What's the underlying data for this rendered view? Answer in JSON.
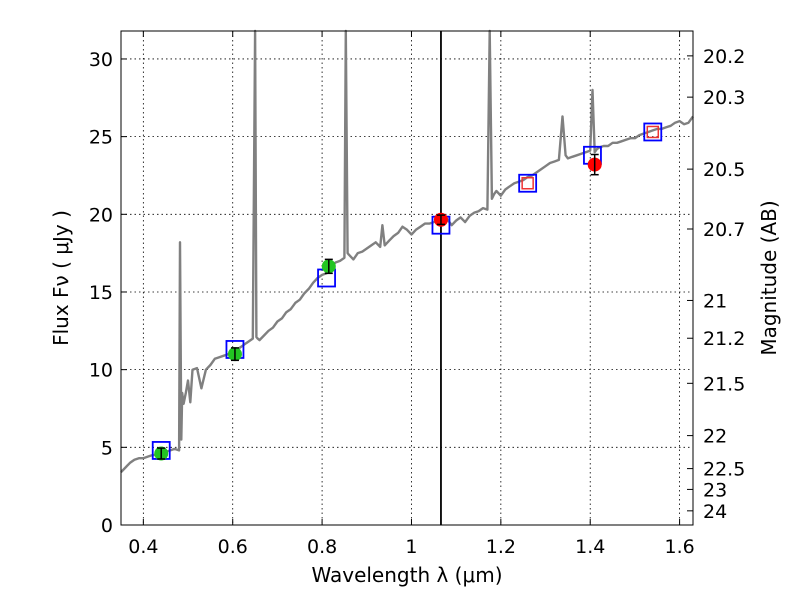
{
  "chart_data": {
    "type": "line",
    "xlabel": "Wavelength  λ (μm)",
    "ylabel": "Flux  Fν  ( μJy )",
    "ylabel_right": "Magnitude (AB)",
    "xlim": [
      0.35,
      1.63
    ],
    "ylim": [
      0,
      31.8
    ],
    "grid": true,
    "x_ticks": [
      0.4,
      0.6,
      0.8,
      1.0,
      1.2,
      1.4,
      1.6
    ],
    "x_tick_labels": [
      "0.4",
      "0.6",
      "0.8",
      "1",
      "1.2",
      "1.4",
      "1.6"
    ],
    "y_ticks": [
      0,
      5,
      10,
      15,
      20,
      25,
      30
    ],
    "y_tick_labels": [
      "0",
      "5",
      "10",
      "15",
      "20",
      "25",
      "30"
    ],
    "mag_ticks": [
      20.2,
      20.3,
      20.5,
      20.7,
      21,
      21.2,
      21.5,
      22,
      22.5,
      23,
      24
    ],
    "mag_tick_labels": [
      "20.2",
      "20.3",
      "20.5",
      "20.7",
      "21",
      "21.2",
      "21.5",
      "22",
      "22.5",
      "23",
      "24"
    ],
    "vline_x": 1.066,
    "colors": {
      "spectrum": "#808080",
      "green": "#22c522",
      "red": "#ff0000",
      "blue": "#0000ff",
      "pink_box": "#ee3333"
    },
    "spectrum": {
      "x": [
        0.35,
        0.36,
        0.37,
        0.38,
        0.39,
        0.4,
        0.41,
        0.42,
        0.43,
        0.44,
        0.45,
        0.46,
        0.47,
        0.48,
        0.482,
        0.485,
        0.487,
        0.49,
        0.495,
        0.5,
        0.505,
        0.51,
        0.52,
        0.53,
        0.54,
        0.55,
        0.56,
        0.57,
        0.58,
        0.59,
        0.6,
        0.61,
        0.62,
        0.63,
        0.64,
        0.645,
        0.65,
        0.653,
        0.656,
        0.66,
        0.67,
        0.68,
        0.69,
        0.7,
        0.71,
        0.72,
        0.73,
        0.74,
        0.75,
        0.76,
        0.77,
        0.78,
        0.79,
        0.8,
        0.81,
        0.82,
        0.83,
        0.84,
        0.85,
        0.853,
        0.857,
        0.86,
        0.87,
        0.88,
        0.89,
        0.9,
        0.91,
        0.92,
        0.93,
        0.935,
        0.94,
        0.95,
        0.96,
        0.97,
        0.98,
        0.99,
        1.0,
        1.01,
        1.02,
        1.03,
        1.04,
        1.05,
        1.06,
        1.07,
        1.08,
        1.09,
        1.1,
        1.11,
        1.12,
        1.13,
        1.14,
        1.15,
        1.16,
        1.17,
        1.175,
        1.18,
        1.185,
        1.19,
        1.2,
        1.21,
        1.22,
        1.23,
        1.24,
        1.25,
        1.26,
        1.27,
        1.28,
        1.29,
        1.3,
        1.31,
        1.32,
        1.33,
        1.338,
        1.345,
        1.35,
        1.36,
        1.37,
        1.38,
        1.39,
        1.4,
        1.405,
        1.41,
        1.415,
        1.42,
        1.43,
        1.44,
        1.45,
        1.46,
        1.47,
        1.48,
        1.49,
        1.5,
        1.51,
        1.52,
        1.53,
        1.54,
        1.55,
        1.56,
        1.57,
        1.58,
        1.59,
        1.6,
        1.61,
        1.62,
        1.63
      ],
      "y": [
        3.4,
        3.7,
        4.0,
        4.2,
        4.3,
        4.3,
        4.4,
        4.5,
        4.5,
        4.6,
        4.7,
        4.8,
        4.9,
        4.8,
        18.2,
        5.5,
        8.5,
        7.8,
        8.5,
        9.3,
        7.9,
        10.0,
        10.1,
        8.8,
        10.0,
        10.3,
        10.7,
        10.8,
        10.9,
        11.0,
        11.1,
        11.3,
        11.5,
        11.7,
        11.9,
        12.0,
        31.8,
        12.1,
        12.0,
        11.9,
        12.2,
        12.5,
        12.7,
        13.1,
        13.3,
        13.7,
        13.9,
        14.3,
        14.5,
        14.9,
        15.2,
        15.6,
        15.9,
        16.1,
        16.2,
        16.6,
        16.9,
        17.0,
        17.2,
        31.8,
        17.5,
        17.4,
        17.1,
        17.5,
        17.6,
        17.8,
        18.0,
        18.2,
        17.9,
        19.3,
        18.0,
        18.3,
        18.6,
        18.8,
        19.2,
        19.0,
        18.7,
        19.0,
        19.2,
        19.4,
        19.4,
        19.5,
        19.6,
        19.4,
        19.7,
        19.3,
        19.6,
        19.8,
        19.5,
        19.9,
        20.1,
        20.2,
        20.4,
        20.3,
        31.8,
        21.0,
        21.3,
        21.5,
        21.2,
        21.6,
        21.8,
        22.0,
        22.1,
        22.2,
        22.4,
        22.5,
        22.7,
        22.9,
        23.1,
        23.3,
        23.4,
        23.5,
        26.3,
        23.8,
        23.6,
        23.7,
        23.8,
        23.9,
        24.0,
        24.1,
        28.0,
        24.0,
        24.2,
        24.3,
        24.4,
        24.4,
        24.6,
        24.6,
        24.7,
        24.8,
        24.9,
        24.9,
        25.1,
        25.2,
        25.3,
        25.4,
        25.5,
        25.5,
        25.6,
        25.7,
        25.9,
        26.0,
        25.8,
        25.9,
        26.3
      ]
    },
    "photometry_green": [
      {
        "x": 0.44,
        "y": 4.6,
        "err": 0.35
      },
      {
        "x": 0.605,
        "y": 11.0,
        "err": 0.4
      },
      {
        "x": 0.815,
        "y": 16.65,
        "err": 0.45
      }
    ],
    "photometry_red": [
      {
        "x": 1.066,
        "y": 19.65,
        "err": 0.3
      },
      {
        "x": 1.41,
        "y": 23.2,
        "err": 0.65
      }
    ],
    "model_boxes_blue": [
      {
        "x": 0.44,
        "y": 4.8
      },
      {
        "x": 0.605,
        "y": 11.3
      },
      {
        "x": 0.81,
        "y": 15.9
      },
      {
        "x": 1.066,
        "y": 19.3
      },
      {
        "x": 1.26,
        "y": 22.0
      },
      {
        "x": 1.405,
        "y": 23.8
      },
      {
        "x": 1.54,
        "y": 25.3
      }
    ],
    "model_boxes_pink": [
      {
        "x": 1.26,
        "y": 22.0
      },
      {
        "x": 1.54,
        "y": 25.3
      }
    ]
  }
}
